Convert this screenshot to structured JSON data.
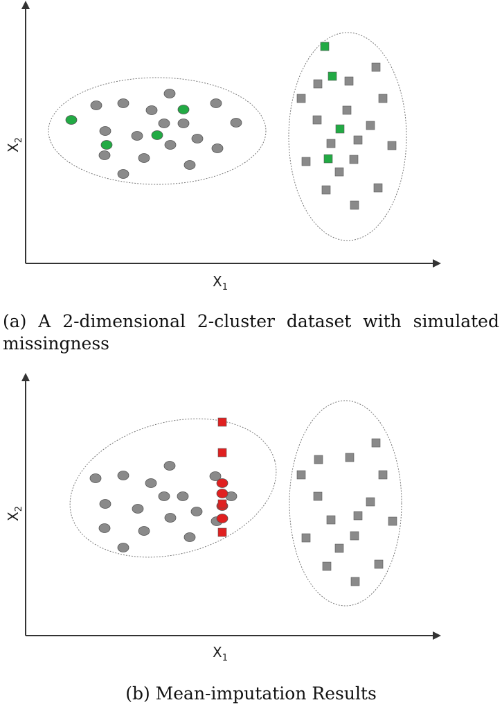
{
  "figure": {
    "panels": [
      {
        "id": "a",
        "caption_line1": "(a) A 2-dimensional 2-cluster dataset with simulated",
        "caption_line2": "missingness",
        "x_axis_label": "X",
        "x_axis_sub": "1",
        "y_axis_label": "X",
        "y_axis_sub": "2"
      },
      {
        "id": "b",
        "caption": "(b) Mean-imputation Results",
        "x_axis_label": "X",
        "x_axis_sub": "1",
        "y_axis_label": "X",
        "y_axis_sub": "2"
      }
    ],
    "colors": {
      "observed": "#8a8a8a",
      "missing": "#22aa44",
      "imputed": "#e02020",
      "axis": "#333333",
      "cluster_outline": "#777777"
    },
    "legend_semantics": {
      "circle": "cluster 1",
      "square": "cluster 2"
    }
  }
}
